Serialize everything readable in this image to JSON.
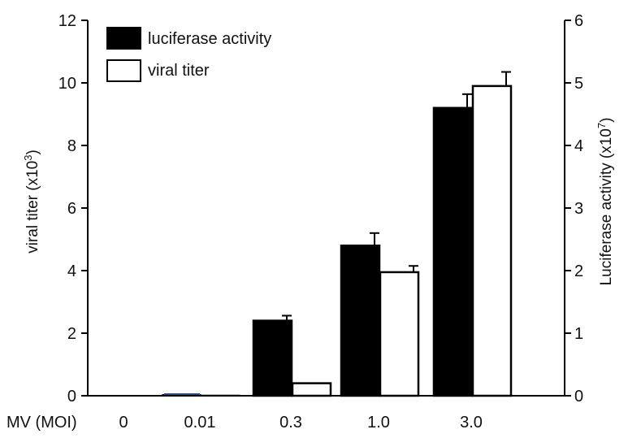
{
  "chart_data": {
    "type": "bar",
    "x_axis_title": "MV (MOI)",
    "categories": [
      "0",
      "0.01",
      "0.3",
      "1.0",
      "3.0"
    ],
    "y_left": {
      "label_main": "viral titer (x10",
      "label_sup": "3",
      "label_end": ")",
      "ylim": [
        0,
        12
      ],
      "ticks": [
        "0",
        "2",
        "4",
        "6",
        "8",
        "10",
        "12"
      ]
    },
    "y_right": {
      "label_main": "Luciferase activity (x10",
      "label_sup": "7",
      "label_end": ")",
      "ylim": [
        0,
        6
      ],
      "ticks": [
        "0",
        "1",
        "2",
        "3",
        "4",
        "5",
        "6"
      ]
    },
    "series": [
      {
        "name": "luciferase activity",
        "axis": "right",
        "color": "#000000",
        "values": [
          0,
          0.02,
          1.2,
          2.4,
          4.6
        ],
        "errors": [
          0,
          0,
          0.08,
          0.2,
          0.22
        ]
      },
      {
        "name": "viral titer",
        "axis": "left",
        "color": "#ffffff",
        "values": [
          0,
          0.02,
          0.4,
          3.95,
          9.9
        ],
        "errors": [
          0,
          0,
          0,
          0.2,
          0.45
        ]
      }
    ],
    "legend_position": "top-left",
    "grid": false
  }
}
